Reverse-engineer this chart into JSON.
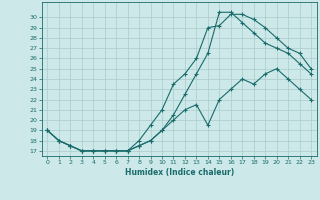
{
  "title": "",
  "xlabel": "Humidex (Indice chaleur)",
  "xlim": [
    -0.5,
    23.5
  ],
  "ylim": [
    16.5,
    31.5
  ],
  "xticks": [
    0,
    1,
    2,
    3,
    4,
    5,
    6,
    7,
    8,
    9,
    10,
    11,
    12,
    13,
    14,
    15,
    16,
    17,
    18,
    19,
    20,
    21,
    22,
    23
  ],
  "yticks": [
    17,
    18,
    19,
    20,
    21,
    22,
    23,
    24,
    25,
    26,
    27,
    28,
    29,
    30
  ],
  "bg_color": "#cce8e8",
  "grid_color": "#aacccc",
  "line_color": "#1a6b6b",
  "curve1_x": [
    0,
    1,
    2,
    3,
    4,
    5,
    6,
    7,
    8,
    9,
    10,
    11,
    12,
    13,
    14,
    15,
    16,
    17,
    18,
    19,
    20,
    21,
    22,
    23
  ],
  "curve1_y": [
    19,
    18,
    17.5,
    17,
    17,
    17,
    17,
    17,
    18,
    19.5,
    21,
    23.5,
    24.5,
    26,
    29,
    29.2,
    30.3,
    30.3,
    29.8,
    29,
    28,
    27,
    26.5,
    25
  ],
  "curve2_x": [
    0,
    1,
    2,
    3,
    4,
    5,
    6,
    7,
    8,
    9,
    10,
    11,
    12,
    13,
    14,
    15,
    16,
    17,
    18,
    19,
    20,
    21,
    22,
    23
  ],
  "curve2_y": [
    19,
    18,
    17.5,
    17,
    17,
    17,
    17,
    17,
    17.5,
    18,
    19,
    20.5,
    22.5,
    24.5,
    26.5,
    30.5,
    30.5,
    29.5,
    28.5,
    27.5,
    27,
    26.5,
    25.5,
    24.5
  ],
  "curve3_x": [
    0,
    1,
    2,
    3,
    4,
    5,
    6,
    7,
    8,
    9,
    10,
    11,
    12,
    13,
    14,
    15,
    16,
    17,
    18,
    19,
    20,
    21,
    22,
    23
  ],
  "curve3_y": [
    19,
    18,
    17.5,
    17,
    17,
    17,
    17,
    17,
    17.5,
    18,
    19,
    20,
    21,
    21.5,
    19.5,
    22,
    23,
    24,
    23.5,
    24.5,
    25,
    24,
    23,
    22
  ]
}
